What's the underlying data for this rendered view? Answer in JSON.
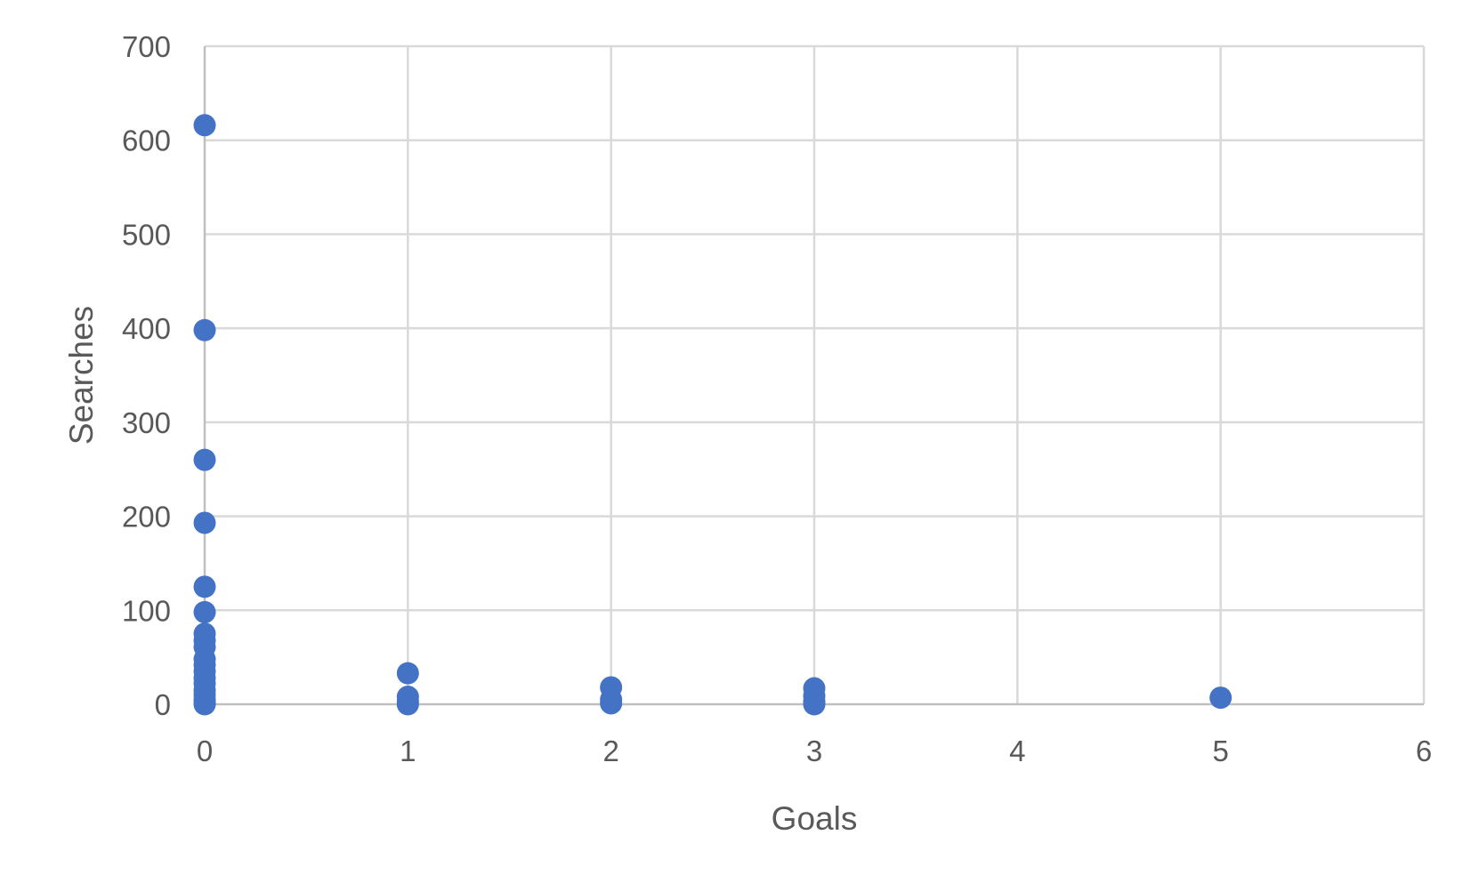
{
  "chart_data": {
    "type": "scatter",
    "title": "",
    "xlabel": "Goals",
    "ylabel": "Searches",
    "xlim": [
      0,
      6
    ],
    "ylim": [
      0,
      700
    ],
    "x_ticks": [
      0,
      1,
      2,
      3,
      4,
      5,
      6
    ],
    "y_ticks": [
      0,
      100,
      200,
      300,
      400,
      500,
      600,
      700
    ],
    "grid": true,
    "legend": "none",
    "marker_color": "#4472C4",
    "series": [
      {
        "name": "Searches",
        "points": [
          {
            "x": 0,
            "y": 616
          },
          {
            "x": 0,
            "y": 398
          },
          {
            "x": 0,
            "y": 260
          },
          {
            "x": 0,
            "y": 193
          },
          {
            "x": 0,
            "y": 125
          },
          {
            "x": 0,
            "y": 98
          },
          {
            "x": 0,
            "y": 75
          },
          {
            "x": 0,
            "y": 68
          },
          {
            "x": 0,
            "y": 61
          },
          {
            "x": 0,
            "y": 48
          },
          {
            "x": 0,
            "y": 42
          },
          {
            "x": 0,
            "y": 35
          },
          {
            "x": 0,
            "y": 28
          },
          {
            "x": 0,
            "y": 22
          },
          {
            "x": 0,
            "y": 15
          },
          {
            "x": 0,
            "y": 10
          },
          {
            "x": 0,
            "y": 5
          },
          {
            "x": 0,
            "y": 2
          },
          {
            "x": 0,
            "y": 0
          },
          {
            "x": 1,
            "y": 33
          },
          {
            "x": 1,
            "y": 8
          },
          {
            "x": 1,
            "y": 3
          },
          {
            "x": 1,
            "y": 0
          },
          {
            "x": 2,
            "y": 18
          },
          {
            "x": 2,
            "y": 5
          },
          {
            "x": 2,
            "y": 1
          },
          {
            "x": 3,
            "y": 17
          },
          {
            "x": 3,
            "y": 9
          },
          {
            "x": 3,
            "y": 3
          },
          {
            "x": 3,
            "y": 0
          },
          {
            "x": 5,
            "y": 7
          }
        ]
      }
    ]
  }
}
